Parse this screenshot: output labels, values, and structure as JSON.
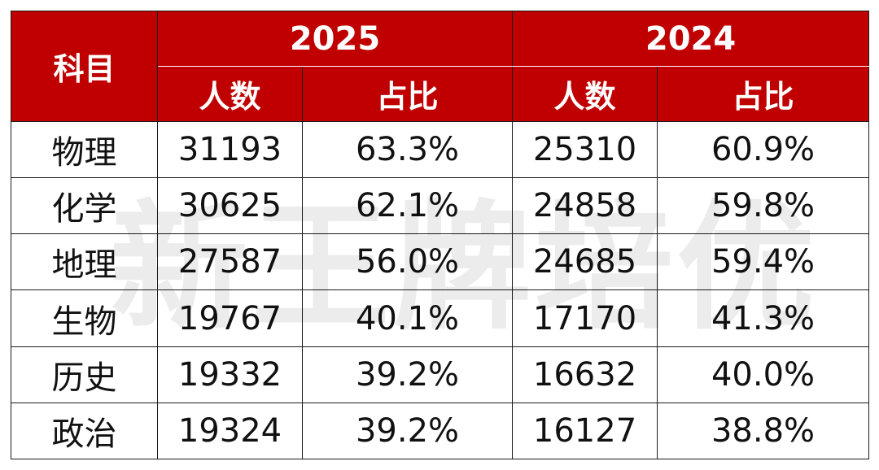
{
  "table": {
    "subject_header": "科目",
    "years": [
      "2025",
      "2024"
    ],
    "sub_headers": [
      "人数",
      "占比",
      "人数",
      "占比"
    ],
    "rows": [
      {
        "subject": "物理",
        "count_2025": "31193",
        "ratio_2025": "63.3%",
        "count_2024": "25310",
        "ratio_2024": "60.9%"
      },
      {
        "subject": "化学",
        "count_2025": "30625",
        "ratio_2025": "62.1%",
        "count_2024": "24858",
        "ratio_2024": "59.8%"
      },
      {
        "subject": "地理",
        "count_2025": "27587",
        "ratio_2025": "56.0%",
        "count_2024": "24685",
        "ratio_2024": "59.4%"
      },
      {
        "subject": "生物",
        "count_2025": "19767",
        "ratio_2025": "40.1%",
        "count_2024": "17170",
        "ratio_2024": "41.3%"
      },
      {
        "subject": "历史",
        "count_2025": "19332",
        "ratio_2025": "39.2%",
        "count_2024": "16632",
        "ratio_2024": "40.0%"
      },
      {
        "subject": "政治",
        "count_2025": "19324",
        "ratio_2025": "39.2%",
        "count_2024": "16127",
        "ratio_2024": "38.8%"
      }
    ]
  },
  "watermark": "新王牌培优",
  "colors": {
    "header_bg": "#c00000",
    "header_text": "#ffffff",
    "body_text": "#111111",
    "border": "#1a1a1a"
  }
}
